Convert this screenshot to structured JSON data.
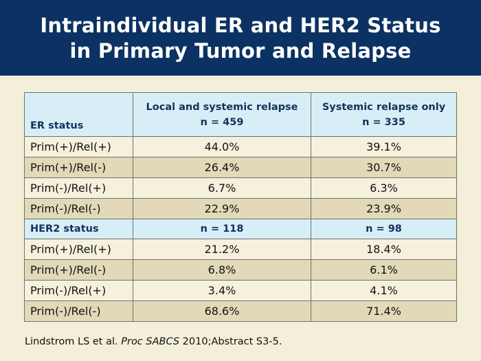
{
  "slide": {
    "title_line1": "Intraindividual ER and HER2 Status",
    "title_line2": "in Primary Tumor and Relapse",
    "colors": {
      "header_bg": "#0c3263",
      "table_header_bg": "#d8eef6",
      "row_light": "#f5f1dc",
      "row_dark": "#e2d9b8",
      "page_bg": "#f3efd9"
    }
  },
  "table": {
    "col1_header": "ER status",
    "col2_header_line1": "Local and systemic relapse",
    "col2_header_line2": "n = 459",
    "col3_header_line1": "Systemic relapse only",
    "col3_header_line2": "n = 335",
    "er_rows": [
      {
        "label": "Prim(+)/Rel(+)",
        "local_systemic": "44.0%",
        "systemic_only": "39.1%"
      },
      {
        "label": "Prim(+)/Rel(-)",
        "local_systemic": "26.4%",
        "systemic_only": "30.7%"
      },
      {
        "label": "Prim(-)/Rel(+)",
        "local_systemic": "6.7%",
        "systemic_only": "6.3%"
      },
      {
        "label": "Prim(-)/Rel(-)",
        "local_systemic": "22.9%",
        "systemic_only": "23.9%"
      }
    ],
    "her2_header": {
      "label": "HER2 status",
      "local_systemic_n": "n = 118",
      "systemic_only_n": "n = 98"
    },
    "her2_rows": [
      {
        "label": "Prim(+)/Rel(+)",
        "local_systemic": "21.2%",
        "systemic_only": "18.4%"
      },
      {
        "label": "Prim(+)/Rel(-)",
        "local_systemic": "6.8%",
        "systemic_only": "6.1%"
      },
      {
        "label": "Prim(-)/Rel(+)",
        "local_systemic": "3.4%",
        "systemic_only": "4.1%"
      },
      {
        "label": "Prim(-)/Rel(-)",
        "local_systemic": "68.6%",
        "systemic_only": "71.4%"
      }
    ]
  },
  "citation": {
    "authors": "Lindstrom LS et al. ",
    "journal": "Proc SABCS",
    "details": " 2010;Abstract S3-5."
  }
}
